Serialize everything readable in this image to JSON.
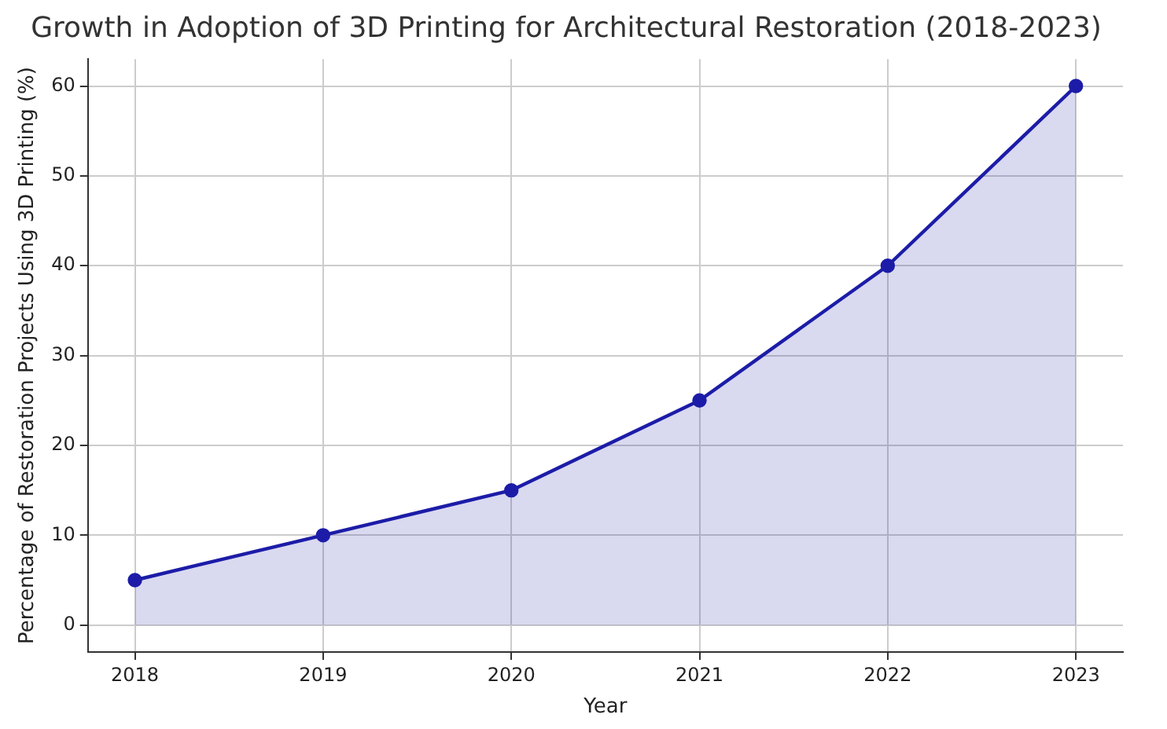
{
  "chart_data": {
    "type": "area",
    "title": "Growth in Adoption of 3D Printing for Architectural Restoration (2018-2023)",
    "xlabel": "Year",
    "ylabel": "Percentage of Restoration Projects Using 3D Printing (%)",
    "x": [
      2018,
      2019,
      2020,
      2021,
      2022,
      2023
    ],
    "series": [
      {
        "color": "#1c1ca8",
        "values": [
          5,
          10,
          15,
          25,
          40,
          60
        ]
      }
    ],
    "xlim": [
      2017.75,
      2023.25
    ],
    "xticks": [
      2018,
      2019,
      2020,
      2021,
      2022,
      2023
    ],
    "ylim": [
      -3,
      63
    ],
    "yticks": [
      0,
      10,
      20,
      30,
      40,
      50,
      60
    ],
    "grid": true,
    "marker": "circle",
    "line_style": "solid",
    "legend": false
  }
}
